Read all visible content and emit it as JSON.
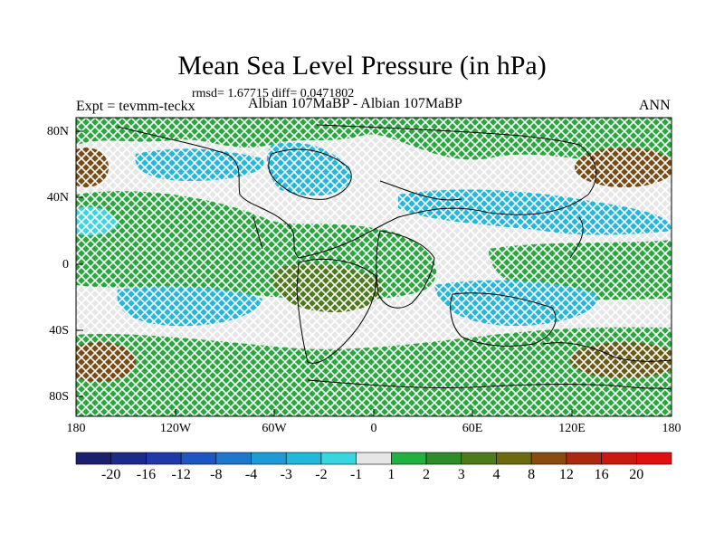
{
  "figure": {
    "title": "Mean Sea Level Pressure (in hPa)",
    "stats_line": "rmsd= 1.67715 diff= 0.0471802",
    "experiment": "Expt = tevmm-teckx",
    "comparison": "Albian   107MaBP - Albian   107MaBP",
    "season": "ANN"
  },
  "axes": {
    "lat_labels": [
      "80N",
      "40N",
      "0",
      "40S",
      "80S"
    ],
    "lon_labels": [
      "180",
      "120W",
      "60W",
      "0",
      "60E",
      "120E",
      "180"
    ]
  },
  "colorbar": {
    "labels": [
      "-20",
      "-16",
      "-12",
      "-8",
      "-4",
      "-3",
      "-2",
      "-1",
      "1",
      "2",
      "3",
      "4",
      "8",
      "12",
      "16",
      "20"
    ],
    "colors": [
      "#1a1f6e",
      "#1c2a8c",
      "#1f3aa6",
      "#1f55c0",
      "#1f78cc",
      "#1f9ad6",
      "#22b8dc",
      "#3ad6df",
      "#e6e6e6",
      "#22b040",
      "#2e8c2a",
      "#4d7a1a",
      "#6b6a10",
      "#8a4a10",
      "#a82a10",
      "#c81a10",
      "#e01010"
    ]
  },
  "legend_colors": {
    "land_outline": "#000000",
    "neutral": "#e6e6e6"
  }
}
